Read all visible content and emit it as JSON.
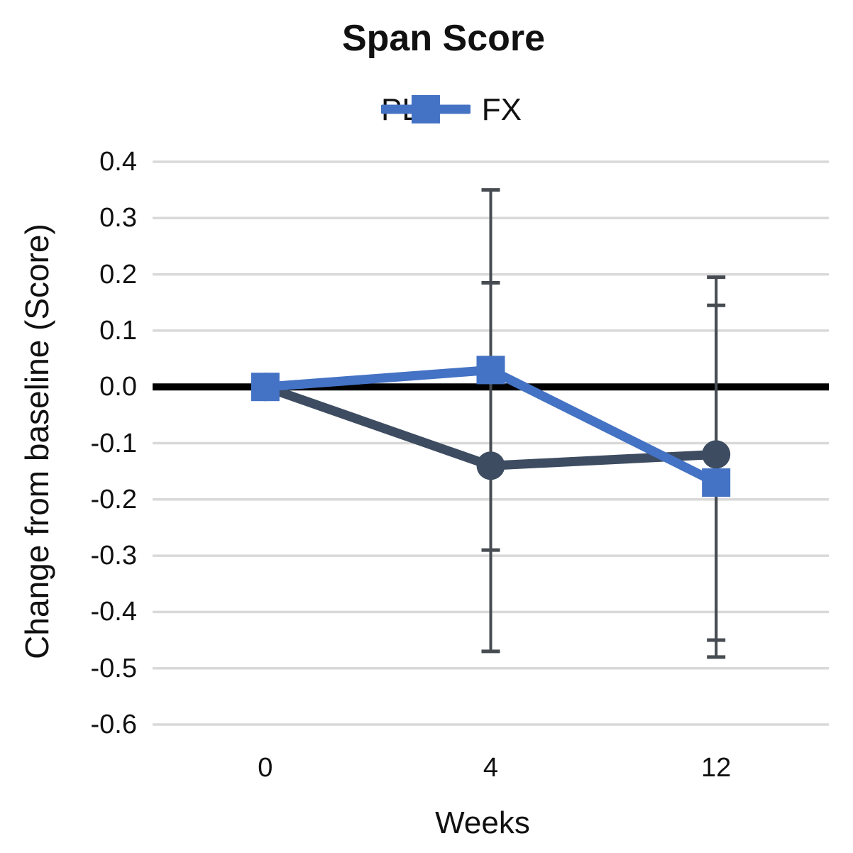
{
  "chart_data": {
    "type": "line",
    "title": "Span Score",
    "xlabel": "Weeks",
    "ylabel": "Change from baseline (Score)",
    "categories": [
      "0",
      "4",
      "12"
    ],
    "x_values_weeks": [
      0,
      4,
      12
    ],
    "y_ticks": [
      "0.4",
      "0.3",
      "0.2",
      "0.1",
      "0.0",
      "-0.1",
      "-0.2",
      "-0.3",
      "-0.4",
      "-0.5",
      "-0.6"
    ],
    "ylim": [
      -0.6,
      0.4
    ],
    "grid": true,
    "legend_position": "top-center",
    "series": [
      {
        "name": "PL",
        "marker": "circle",
        "color": "#3E4C61",
        "values": [
          0.0,
          -0.14,
          -0.12
        ],
        "error_bars": [
          {
            "category_index": 1,
            "low": -0.47,
            "high": 0.185
          },
          {
            "category_index": 2,
            "low": -0.45,
            "high": 0.195
          }
        ]
      },
      {
        "name": "FX",
        "marker": "square",
        "color": "#4472C4",
        "values": [
          0.0,
          0.03,
          -0.17
        ],
        "error_bars": [
          {
            "category_index": 1,
            "low": -0.29,
            "high": 0.35
          },
          {
            "category_index": 2,
            "low": -0.48,
            "high": 0.145
          }
        ]
      }
    ],
    "colors": {
      "gridline": "#D9D9D9",
      "zero_line": "#000000",
      "error_bar": "#474C52"
    }
  }
}
